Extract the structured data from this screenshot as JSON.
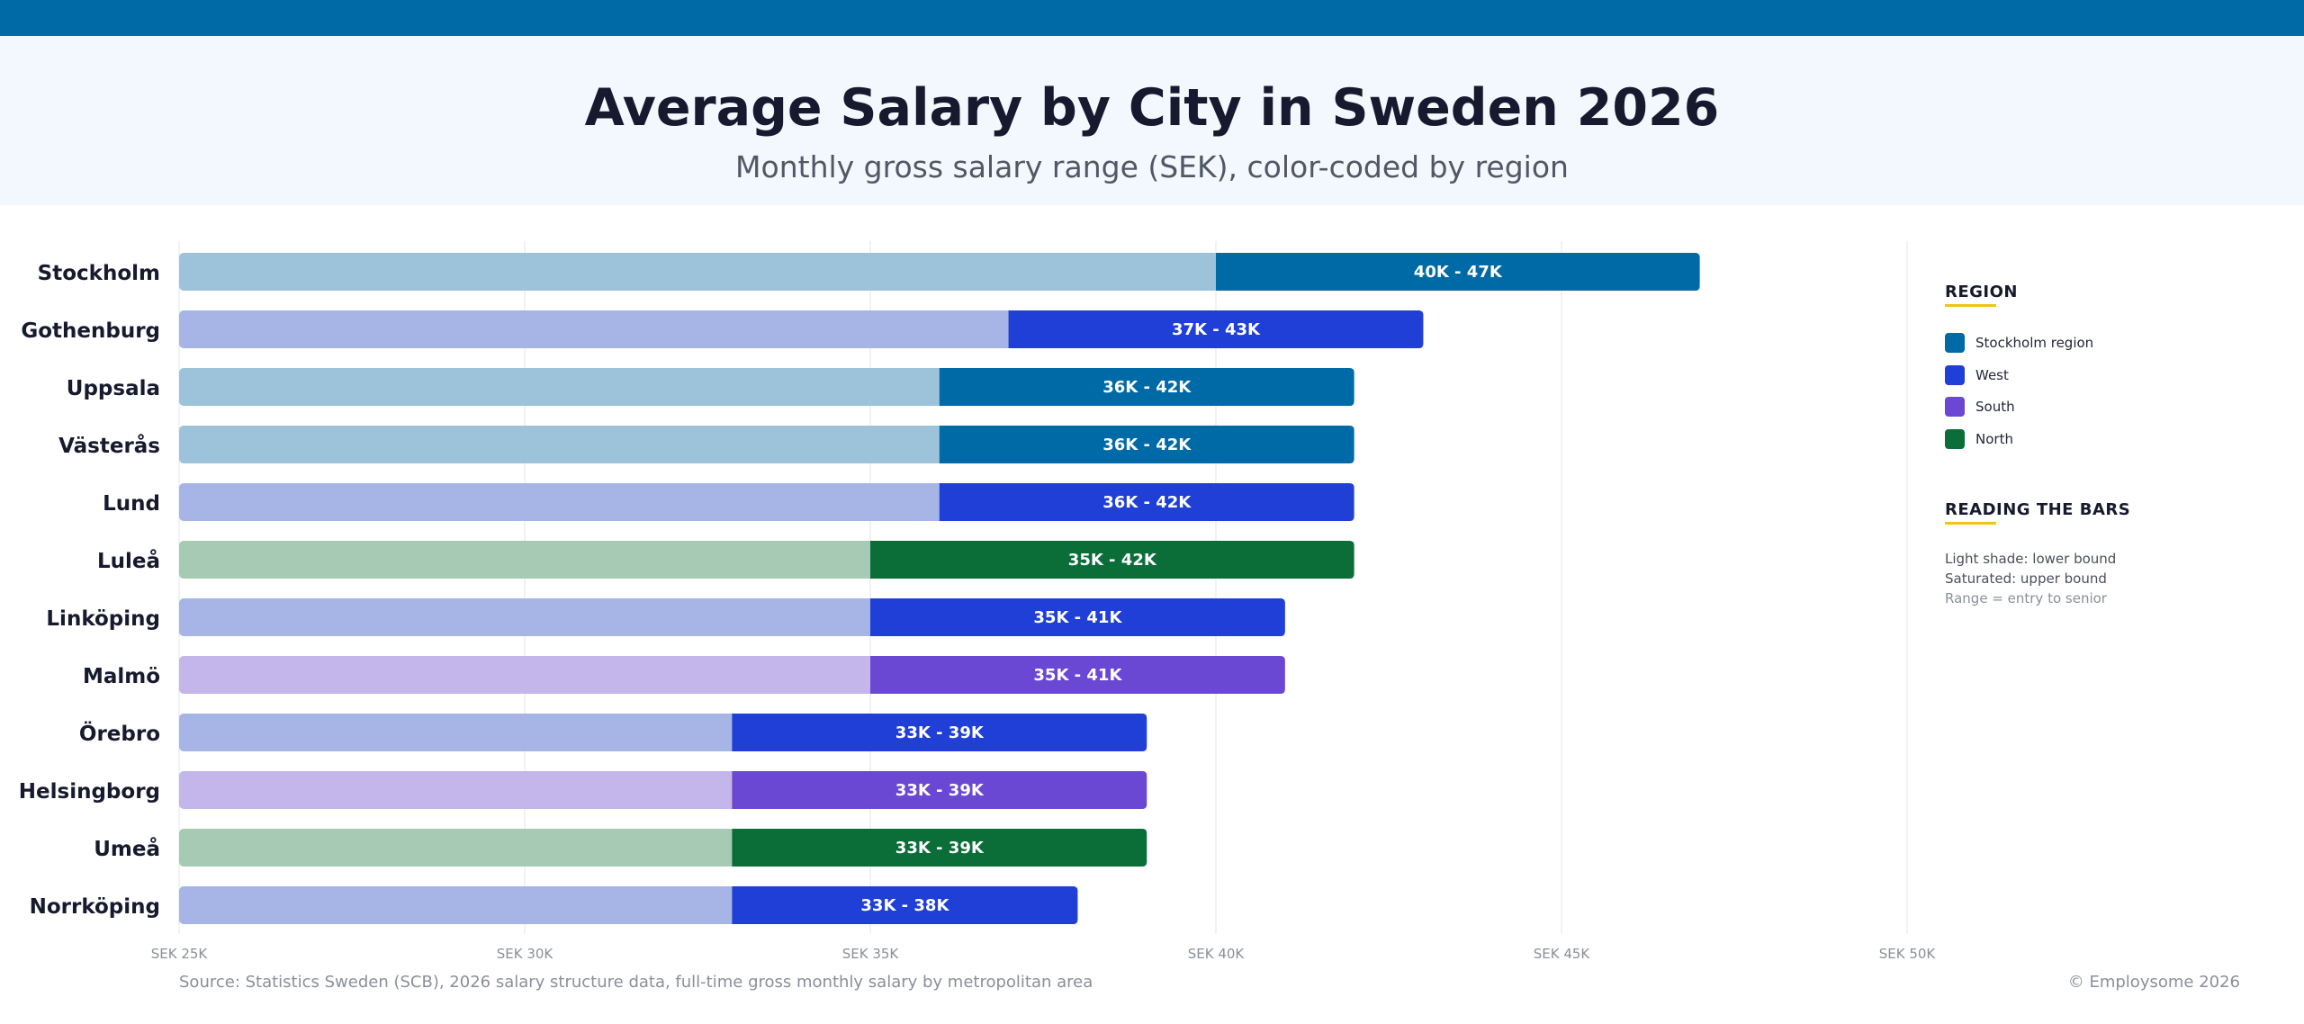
{
  "header": {
    "title": "Average Salary by City in Sweden 2026",
    "subtitle": "Monthly gross salary range (SEK), color-coded by region"
  },
  "chart_data": {
    "type": "bar",
    "orientation": "horizontal",
    "subtype": "range",
    "title": "Average Salary by City in Sweden 2026",
    "subtitle": "Monthly gross salary range (SEK), color-coded by region",
    "xlim": [
      25000,
      50000
    ],
    "x_ticks": [
      25000,
      30000,
      35000,
      40000,
      45000,
      50000
    ],
    "x_tick_labels": [
      "SEK 25K",
      "SEK 30K",
      "SEK 35K",
      "SEK 40K",
      "SEK 45K",
      "SEK 50K"
    ],
    "grid": true,
    "legend_position": "right",
    "categories": [
      "Stockholm",
      "Gothenburg",
      "Uppsala",
      "Västerås",
      "Lund",
      "Luleå",
      "Linköping",
      "Malmö",
      "Örebro",
      "Helsingborg",
      "Umeå",
      "Norrköping"
    ],
    "series": [
      {
        "name": "lower bound",
        "values": [
          40000,
          37000,
          36000,
          36000,
          36000,
          35000,
          35000,
          35000,
          33000,
          33000,
          33000,
          33000
        ]
      },
      {
        "name": "upper bound",
        "values": [
          47000,
          43000,
          42000,
          42000,
          42000,
          42000,
          41000,
          41000,
          39000,
          39000,
          39000,
          38000
        ]
      }
    ],
    "regions": [
      "Stockholm region",
      "West",
      "Stockholm region",
      "Stockholm region",
      "West",
      "North",
      "West",
      "South",
      "West",
      "South",
      "North",
      "West"
    ],
    "data_labels": [
      "40K - 47K",
      "37K - 43K",
      "36K - 42K",
      "36K - 42K",
      "36K - 42K",
      "35K - 42K",
      "35K - 41K",
      "35K - 41K",
      "33K - 39K",
      "33K - 39K",
      "33K - 39K",
      "33K - 38K"
    ]
  },
  "regions": [
    {
      "name": "Stockholm region",
      "color": "#006aa7",
      "light": "#9dc3da"
    },
    {
      "name": "West",
      "color": "#1f3fd6",
      "light": "#a7b4e6"
    },
    {
      "name": "South",
      "color": "#6b48d4",
      "light": "#c4b5ea"
    },
    {
      "name": "North",
      "color": "#0b6e39",
      "light": "#a6cab3"
    }
  ],
  "legend": {
    "region_heading": "REGION",
    "reading_heading": "READING THE BARS",
    "notes": [
      "Light shade: lower bound",
      "Saturated: upper bound",
      "Range = entry to senior"
    ]
  },
  "footer": {
    "source": "Source: Statistics Sweden (SCB), 2026 salary structure data, full-time gross monthly salary by metropolitan area",
    "copyright": "© Employsome 2026"
  }
}
